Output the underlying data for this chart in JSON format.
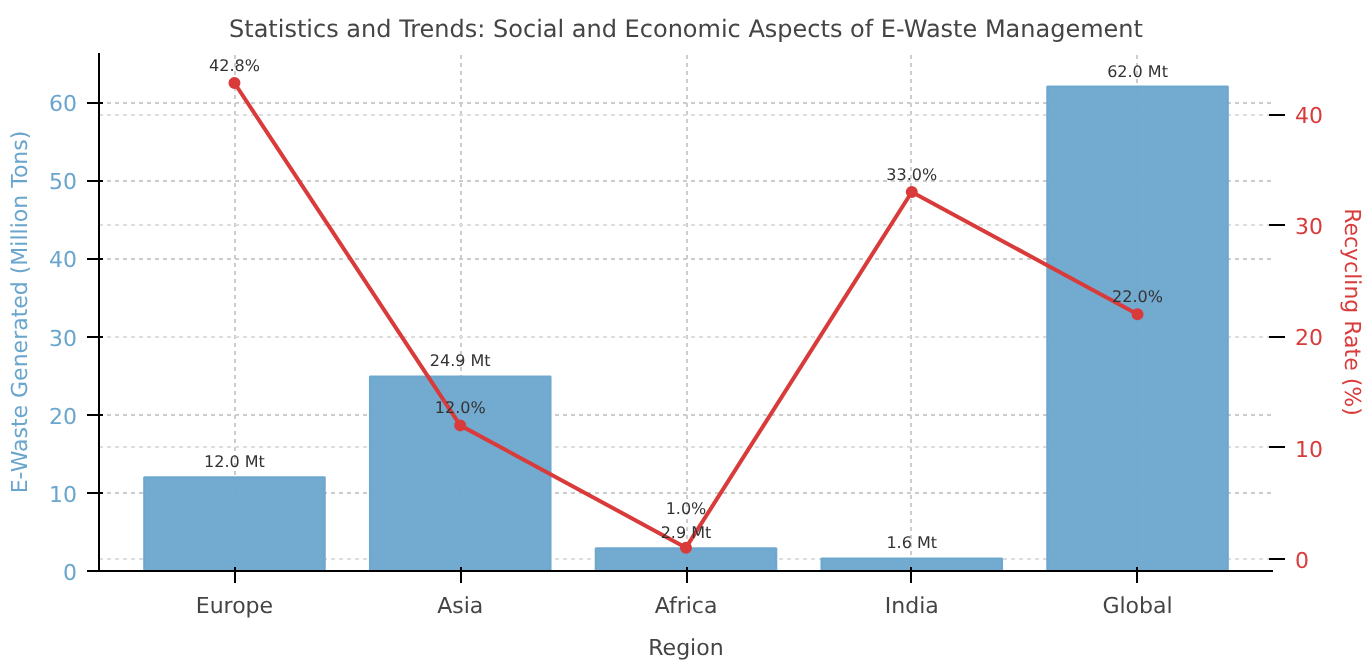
{
  "chart_data": {
    "type": "bar",
    "title": "Statistics and Trends: Social and Economic Aspects of E-Waste Management",
    "xlabel": "Region",
    "ylabel": "E-Waste Generated (Million Tons)",
    "y2label": "Recycling Rate (%)",
    "categories": [
      "Europe",
      "Asia",
      "Africa",
      "India",
      "Global"
    ],
    "series": [
      {
        "color": "#6aa5cd",
        "values": [
          12.0,
          24.9,
          2.9,
          1.6,
          62.0
        ],
        "value_labels": [
          "12.0 Mt",
          "24.9 Mt",
          "2.9 Mt",
          "1.6 Mt",
          "62.0 Mt"
        ]
      },
      {
        "type": "line",
        "axis": "y2",
        "color": "#d93b3b",
        "values": [
          42.8,
          12.0,
          1.0,
          33.0,
          22.0
        ],
        "value_labels": [
          "42.8%",
          "12.0%",
          "1.0%",
          "33.0%",
          "22.0%"
        ]
      }
    ],
    "ylim": [
      0,
      66.3
    ],
    "yticks": [
      0,
      10,
      20,
      30,
      40,
      50,
      60
    ],
    "y2lim": [
      -1.1,
      45.5
    ],
    "y2ticks": [
      0,
      10,
      20,
      30,
      40
    ],
    "grid": true,
    "marker": "circle",
    "line_style": "solid"
  }
}
